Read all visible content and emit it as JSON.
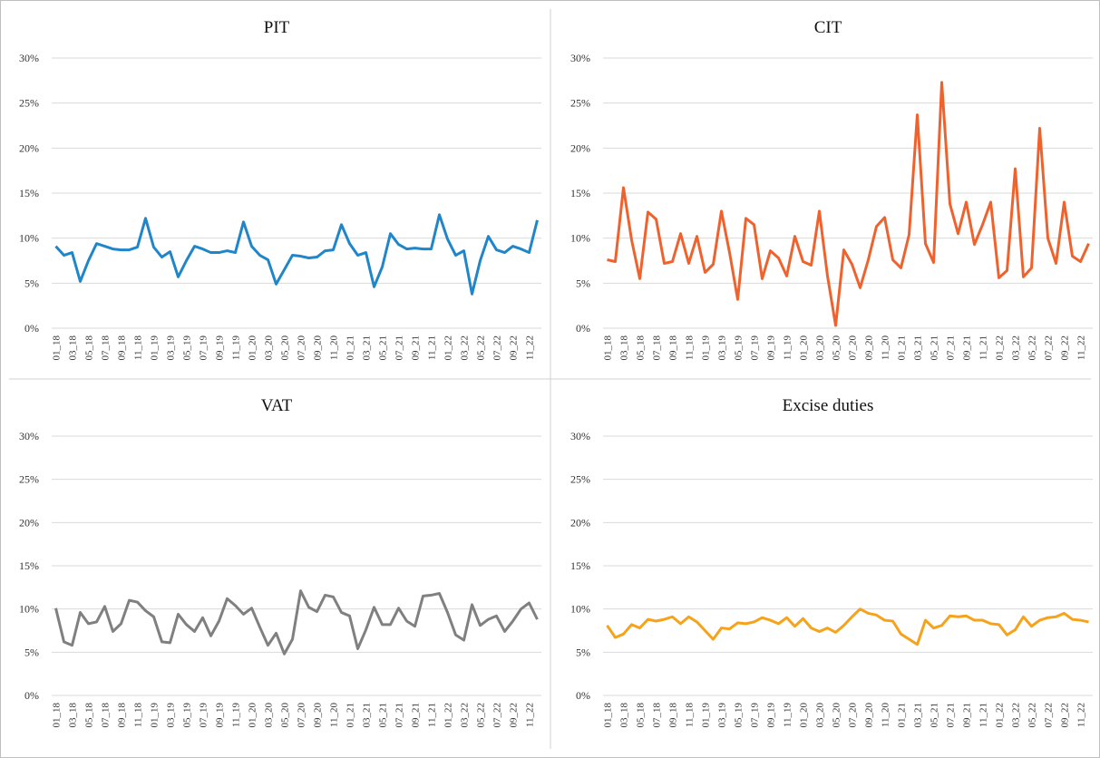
{
  "chart_data": [
    {
      "type": "line",
      "title": "PIT",
      "categories": [
        "01_18",
        null,
        "03_18",
        null,
        "05_18",
        null,
        "07_18",
        null,
        "09_18",
        null,
        "11_18",
        null,
        "01_19",
        null,
        "03_19",
        null,
        "05_19",
        null,
        "07_19",
        null,
        "09_19",
        null,
        "11_19",
        null,
        "01_20",
        null,
        "03_20",
        null,
        "05_20",
        null,
        "07_20",
        null,
        "09_20",
        null,
        "11_20",
        null,
        "01_21",
        null,
        "03_21",
        null,
        "05_21",
        null,
        "07_21",
        null,
        "09_21",
        null,
        "11_21",
        null,
        "01_22",
        null,
        "03_22",
        null,
        "05_22",
        null,
        "07_22",
        null,
        "09_22",
        null,
        "11_22",
        null
      ],
      "series": [
        {
          "color": "#1f86c9",
          "values": [
            9.1,
            8.1,
            8.4,
            5.2,
            7.5,
            9.4,
            9.1,
            8.8,
            8.7,
            8.7,
            9.0,
            12.2,
            9.0,
            7.9,
            8.5,
            5.7,
            7.5,
            9.1,
            8.8,
            8.4,
            8.4,
            8.6,
            8.4,
            11.8,
            9.1,
            8.1,
            7.6,
            4.9,
            6.5,
            8.1,
            8.0,
            7.8,
            7.9,
            8.6,
            8.7,
            11.5,
            9.4,
            8.1,
            8.4,
            4.6,
            6.8,
            10.5,
            9.3,
            8.8,
            8.9,
            8.8,
            8.8,
            12.6,
            9.9,
            8.1,
            8.6,
            3.8,
            7.5,
            10.2,
            8.7,
            8.4,
            9.1,
            8.8,
            8.4,
            12.0
          ]
        }
      ],
      "ylim": [
        0,
        30
      ],
      "yticks": [
        {
          "value": 0,
          "label": "0%"
        },
        {
          "value": 5,
          "label": "5%"
        },
        {
          "value": 10,
          "label": "10%"
        },
        {
          "value": 15,
          "label": "15%"
        },
        {
          "value": 20,
          "label": "20%"
        },
        {
          "value": 25,
          "label": "25%"
        },
        {
          "value": 30,
          "label": "30%"
        }
      ],
      "grid": true
    },
    {
      "type": "line",
      "title": "CIT",
      "categories": [
        "01_18",
        null,
        "03_18",
        null,
        "05_18",
        null,
        "07_18",
        null,
        "09_18",
        null,
        "11_18",
        null,
        "01_19",
        null,
        "03_19",
        null,
        "05_19",
        null,
        "07_19",
        null,
        "09_19",
        null,
        "11_19",
        null,
        "01_20",
        null,
        "03_20",
        null,
        "05_20",
        null,
        "07_20",
        null,
        "09_20",
        null,
        "11_20",
        null,
        "01_21",
        null,
        "03_21",
        null,
        "05_21",
        null,
        "07_21",
        null,
        "09_21",
        null,
        "11_21",
        null,
        "01_22",
        null,
        "03_22",
        null,
        "05_22",
        null,
        "07_22",
        null,
        "09_22",
        null,
        "11_22",
        null
      ],
      "series": [
        {
          "color": "#f0622d",
          "values": [
            7.6,
            7.4,
            15.6,
            9.8,
            5.5,
            12.9,
            12.1,
            7.2,
            7.4,
            10.5,
            7.2,
            10.2,
            6.2,
            7.1,
            13.0,
            8.4,
            3.2,
            12.2,
            11.5,
            5.5,
            8.6,
            7.8,
            5.8,
            10.2,
            7.4,
            7.0,
            13.0,
            5.8,
            0.3,
            8.7,
            7.1,
            4.5,
            7.6,
            11.3,
            12.3,
            7.6,
            6.7,
            10.4,
            23.7,
            9.4,
            7.3,
            27.3,
            13.8,
            10.5,
            14.0,
            9.3,
            11.5,
            14.0,
            5.6,
            6.4,
            17.7,
            5.7,
            6.7,
            22.2,
            10.0,
            7.2,
            14.0,
            8.0,
            7.4,
            9.4
          ]
        }
      ],
      "ylim": [
        0,
        30
      ],
      "yticks": [
        {
          "value": 0,
          "label": "0%"
        },
        {
          "value": 5,
          "label": "5%"
        },
        {
          "value": 10,
          "label": "10%"
        },
        {
          "value": 15,
          "label": "15%"
        },
        {
          "value": 20,
          "label": "20%"
        },
        {
          "value": 25,
          "label": "25%"
        },
        {
          "value": 30,
          "label": "30%"
        }
      ],
      "grid": true
    },
    {
      "type": "line",
      "title": "VAT",
      "categories": [
        "01_18",
        null,
        "03_18",
        null,
        "05_18",
        null,
        "07_18",
        null,
        "09_18",
        null,
        "11_18",
        null,
        "01_19",
        null,
        "03_19",
        null,
        "05_19",
        null,
        "07_19",
        null,
        "09_19",
        null,
        "11_19",
        null,
        "01_20",
        null,
        "03_20",
        null,
        "05_20",
        null,
        "07_20",
        null,
        "09_20",
        null,
        "11_20",
        null,
        "01_21",
        null,
        "03_21",
        null,
        "05_21",
        null,
        "07_21",
        null,
        "09_21",
        null,
        "11_21",
        null,
        "01_22",
        null,
        "03_22",
        null,
        "05_22",
        null,
        "07_22",
        null,
        "09_22",
        null,
        "11_22",
        null
      ],
      "series": [
        {
          "color": "#808080",
          "values": [
            10.1,
            6.2,
            5.8,
            9.6,
            8.3,
            8.5,
            10.3,
            7.4,
            8.3,
            11.0,
            10.8,
            9.8,
            9.1,
            6.2,
            6.1,
            9.4,
            8.2,
            7.4,
            9.0,
            6.9,
            8.6,
            11.2,
            10.4,
            9.4,
            10.1,
            7.9,
            5.8,
            7.2,
            4.8,
            6.5,
            12.1,
            10.2,
            9.7,
            11.6,
            11.4,
            9.6,
            9.2,
            5.4,
            7.6,
            10.2,
            8.2,
            8.2,
            10.1,
            8.6,
            8.0,
            11.5,
            11.6,
            11.8,
            9.6,
            7.0,
            6.4,
            10.5,
            8.1,
            8.8,
            9.2,
            7.4,
            8.6,
            10.0,
            10.7,
            8.8
          ]
        }
      ],
      "ylim": [
        0,
        30
      ],
      "yticks": [
        {
          "value": 0,
          "label": "0%"
        },
        {
          "value": 5,
          "label": "5%"
        },
        {
          "value": 10,
          "label": "10%"
        },
        {
          "value": 15,
          "label": "15%"
        },
        {
          "value": 20,
          "label": "20%"
        },
        {
          "value": 25,
          "label": "25%"
        },
        {
          "value": 30,
          "label": "30%"
        }
      ],
      "grid": true
    },
    {
      "type": "line",
      "title": "Excise duties",
      "categories": [
        "01_18",
        null,
        "03_18",
        null,
        "05_18",
        null,
        "07_18",
        null,
        "09_18",
        null,
        "11_18",
        null,
        "01_19",
        null,
        "03_19",
        null,
        "05_19",
        null,
        "07_19",
        null,
        "09_19",
        null,
        "11_19",
        null,
        "01_20",
        null,
        "03_20",
        null,
        "05_20",
        null,
        "07_20",
        null,
        "09_20",
        null,
        "11_20",
        null,
        "01_21",
        null,
        "03_21",
        null,
        "05_21",
        null,
        "07_21",
        null,
        "09_21",
        null,
        "11_21",
        null,
        "01_22",
        null,
        "03_22",
        null,
        "05_22",
        null,
        "07_22",
        null,
        "09_22",
        null,
        "11_22",
        null
      ],
      "series": [
        {
          "color": "#f7a21b",
          "values": [
            8.1,
            6.7,
            7.1,
            8.2,
            7.8,
            8.8,
            8.6,
            8.8,
            9.1,
            8.3,
            9.1,
            8.5,
            7.5,
            6.5,
            7.8,
            7.7,
            8.4,
            8.3,
            8.5,
            9.0,
            8.7,
            8.3,
            9.0,
            8.0,
            8.9,
            7.8,
            7.4,
            7.8,
            7.3,
            8.1,
            9.1,
            10.0,
            9.5,
            9.3,
            8.7,
            8.6,
            7.1,
            6.5,
            5.9,
            8.7,
            7.8,
            8.1,
            9.2,
            9.1,
            9.2,
            8.7,
            8.7,
            8.3,
            8.2,
            7.0,
            7.6,
            9.1,
            8.0,
            8.7,
            9.0,
            9.1,
            9.5,
            8.8,
            8.7,
            8.5
          ]
        }
      ],
      "ylim": [
        0,
        30
      ],
      "yticks": [
        {
          "value": 0,
          "label": "0%"
        },
        {
          "value": 5,
          "label": "5%"
        },
        {
          "value": 10,
          "label": "10%"
        },
        {
          "value": 15,
          "label": "15%"
        },
        {
          "value": 20,
          "label": "20%"
        },
        {
          "value": 25,
          "label": "25%"
        },
        {
          "value": 30,
          "label": "30%"
        }
      ],
      "grid": true
    }
  ]
}
